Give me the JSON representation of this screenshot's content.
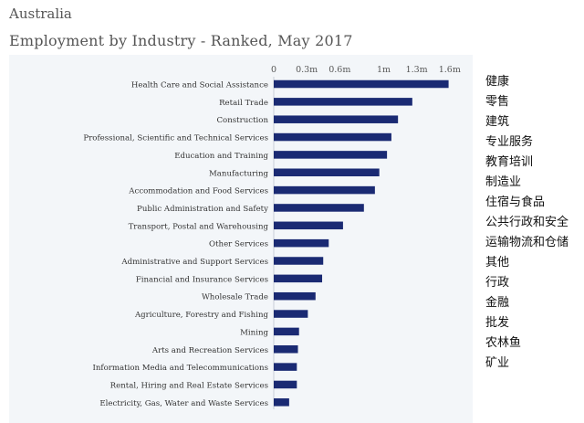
{
  "header": {
    "country": "Australia",
    "title": "Employment by Industry - Ranked, May 2017"
  },
  "chart_data": {
    "type": "bar",
    "orientation": "horizontal",
    "title": "Employment by Industry - Ranked, May 2017",
    "bar_color": "#1a2a73",
    "xlim": [
      0,
      1.65
    ],
    "x_ticks": [
      0,
      0.3,
      0.6,
      1.0,
      1.3,
      1.6
    ],
    "x_tick_labels": [
      "0",
      "0.3m",
      "0.6m",
      "1m",
      "1.3m",
      "1.6m"
    ],
    "x_axis_position": "top",
    "categories": [
      "Health Care and Social Assistance",
      "Retail Trade",
      "Construction",
      "Professional, Scientific and Technical Services",
      "Education and Training",
      "Manufacturing",
      "Accommodation and Food Services",
      "Public Administration and Safety",
      "Transport, Postal and Warehousing",
      "Other Services",
      "Administrative and Support Services",
      "Financial and Insurance Services",
      "Wholesale Trade",
      "Agriculture, Forestry and Fishing",
      "Mining",
      "Arts and Recreation Services",
      "Information Media and Telecommunications",
      "Rental, Hiring and Real Estate Services",
      "Electricity, Gas, Water and Waste Services"
    ],
    "values": [
      1.59,
      1.26,
      1.13,
      1.07,
      1.03,
      0.96,
      0.92,
      0.82,
      0.63,
      0.5,
      0.45,
      0.44,
      0.38,
      0.31,
      0.23,
      0.22,
      0.21,
      0.21,
      0.14
    ],
    "grid": false
  },
  "translations": [
    "健康",
    "零售",
    "建筑",
    "专业服务",
    "教育培训",
    "制造业",
    "住宿与食品",
    "公共行政和安全",
    "运输物流和仓储",
    "其他",
    "行政",
    "金融",
    "批发",
    "农林鱼",
    "矿业"
  ]
}
